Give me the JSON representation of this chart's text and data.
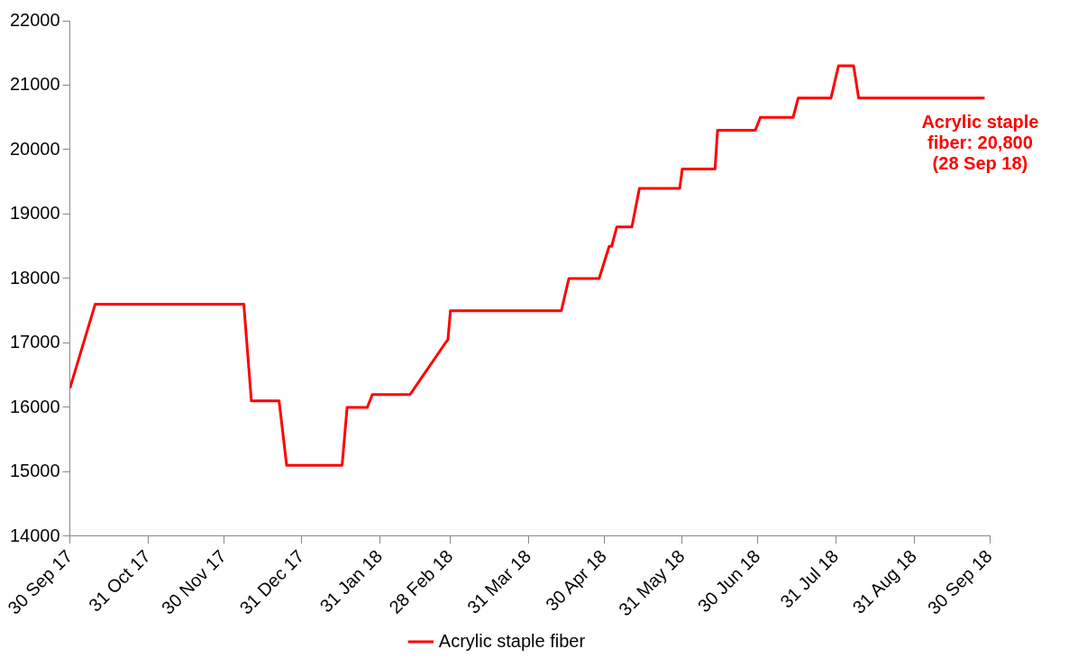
{
  "chart_data": {
    "type": "line",
    "x": [
      "2017-09-30",
      "2017-10-10",
      "2017-12-08",
      "2017-12-11",
      "2017-12-22",
      "2017-12-25",
      "2018-01-16",
      "2018-01-18",
      "2018-01-26",
      "2018-01-28",
      "2018-02-12",
      "2018-02-26",
      "2018-02-27",
      "2018-02-28",
      "2018-04-13",
      "2018-04-16",
      "2018-04-28",
      "2018-05-02",
      "2018-05-03",
      "2018-05-05",
      "2018-05-11",
      "2018-05-14",
      "2018-05-30",
      "2018-05-31",
      "2018-06-13",
      "2018-06-14",
      "2018-06-29",
      "2018-07-01",
      "2018-07-14",
      "2018-07-16",
      "2018-07-29",
      "2018-08-01",
      "2018-08-07",
      "2018-08-09",
      "2018-09-28"
    ],
    "series": [
      {
        "name": "Acrylic staple fiber",
        "color": "#ff0000",
        "values": [
          16300,
          17600,
          17600,
          16100,
          16100,
          15100,
          15100,
          16000,
          16000,
          16200,
          16200,
          17000,
          17050,
          17500,
          17500,
          18000,
          18000,
          18500,
          18500,
          18800,
          18800,
          19400,
          19400,
          19700,
          19700,
          20300,
          20300,
          20500,
          20500,
          20800,
          20800,
          21300,
          21300,
          20800,
          20800
        ]
      }
    ],
    "xlim": [
      "2017-09-30",
      "2018-09-30"
    ],
    "xticks": [
      {
        "value": "2017-09-30",
        "label": "30 Sep 17"
      },
      {
        "value": "2017-10-31",
        "label": "31 Oct 17"
      },
      {
        "value": "2017-11-30",
        "label": "30 Nov 17"
      },
      {
        "value": "2017-12-31",
        "label": "31 Dec 17"
      },
      {
        "value": "2018-01-31",
        "label": "31 Jan 18"
      },
      {
        "value": "2018-02-28",
        "label": "28 Feb 18"
      },
      {
        "value": "2018-03-31",
        "label": "31 Mar 18"
      },
      {
        "value": "2018-04-30",
        "label": "30 Apr 18"
      },
      {
        "value": "2018-05-31",
        "label": "31 May 18"
      },
      {
        "value": "2018-06-30",
        "label": "30 Jun 18"
      },
      {
        "value": "2018-07-31",
        "label": "31 Jul 18"
      },
      {
        "value": "2018-08-31",
        "label": "31 Aug 18"
      },
      {
        "value": "2018-09-30",
        "label": "30 Sep 18"
      }
    ],
    "ylim": [
      14000,
      22000
    ],
    "yticks": [
      14000,
      15000,
      16000,
      17000,
      18000,
      19000,
      20000,
      21000,
      22000
    ],
    "grid": false,
    "legend": "bottom",
    "marker": "none",
    "line_style": "solid",
    "annotations": [
      {
        "text": "Acrylic staple fiber: 20,800 (28 Sep 18)",
        "x": "2018-09-28",
        "y": 20800
      }
    ]
  }
}
